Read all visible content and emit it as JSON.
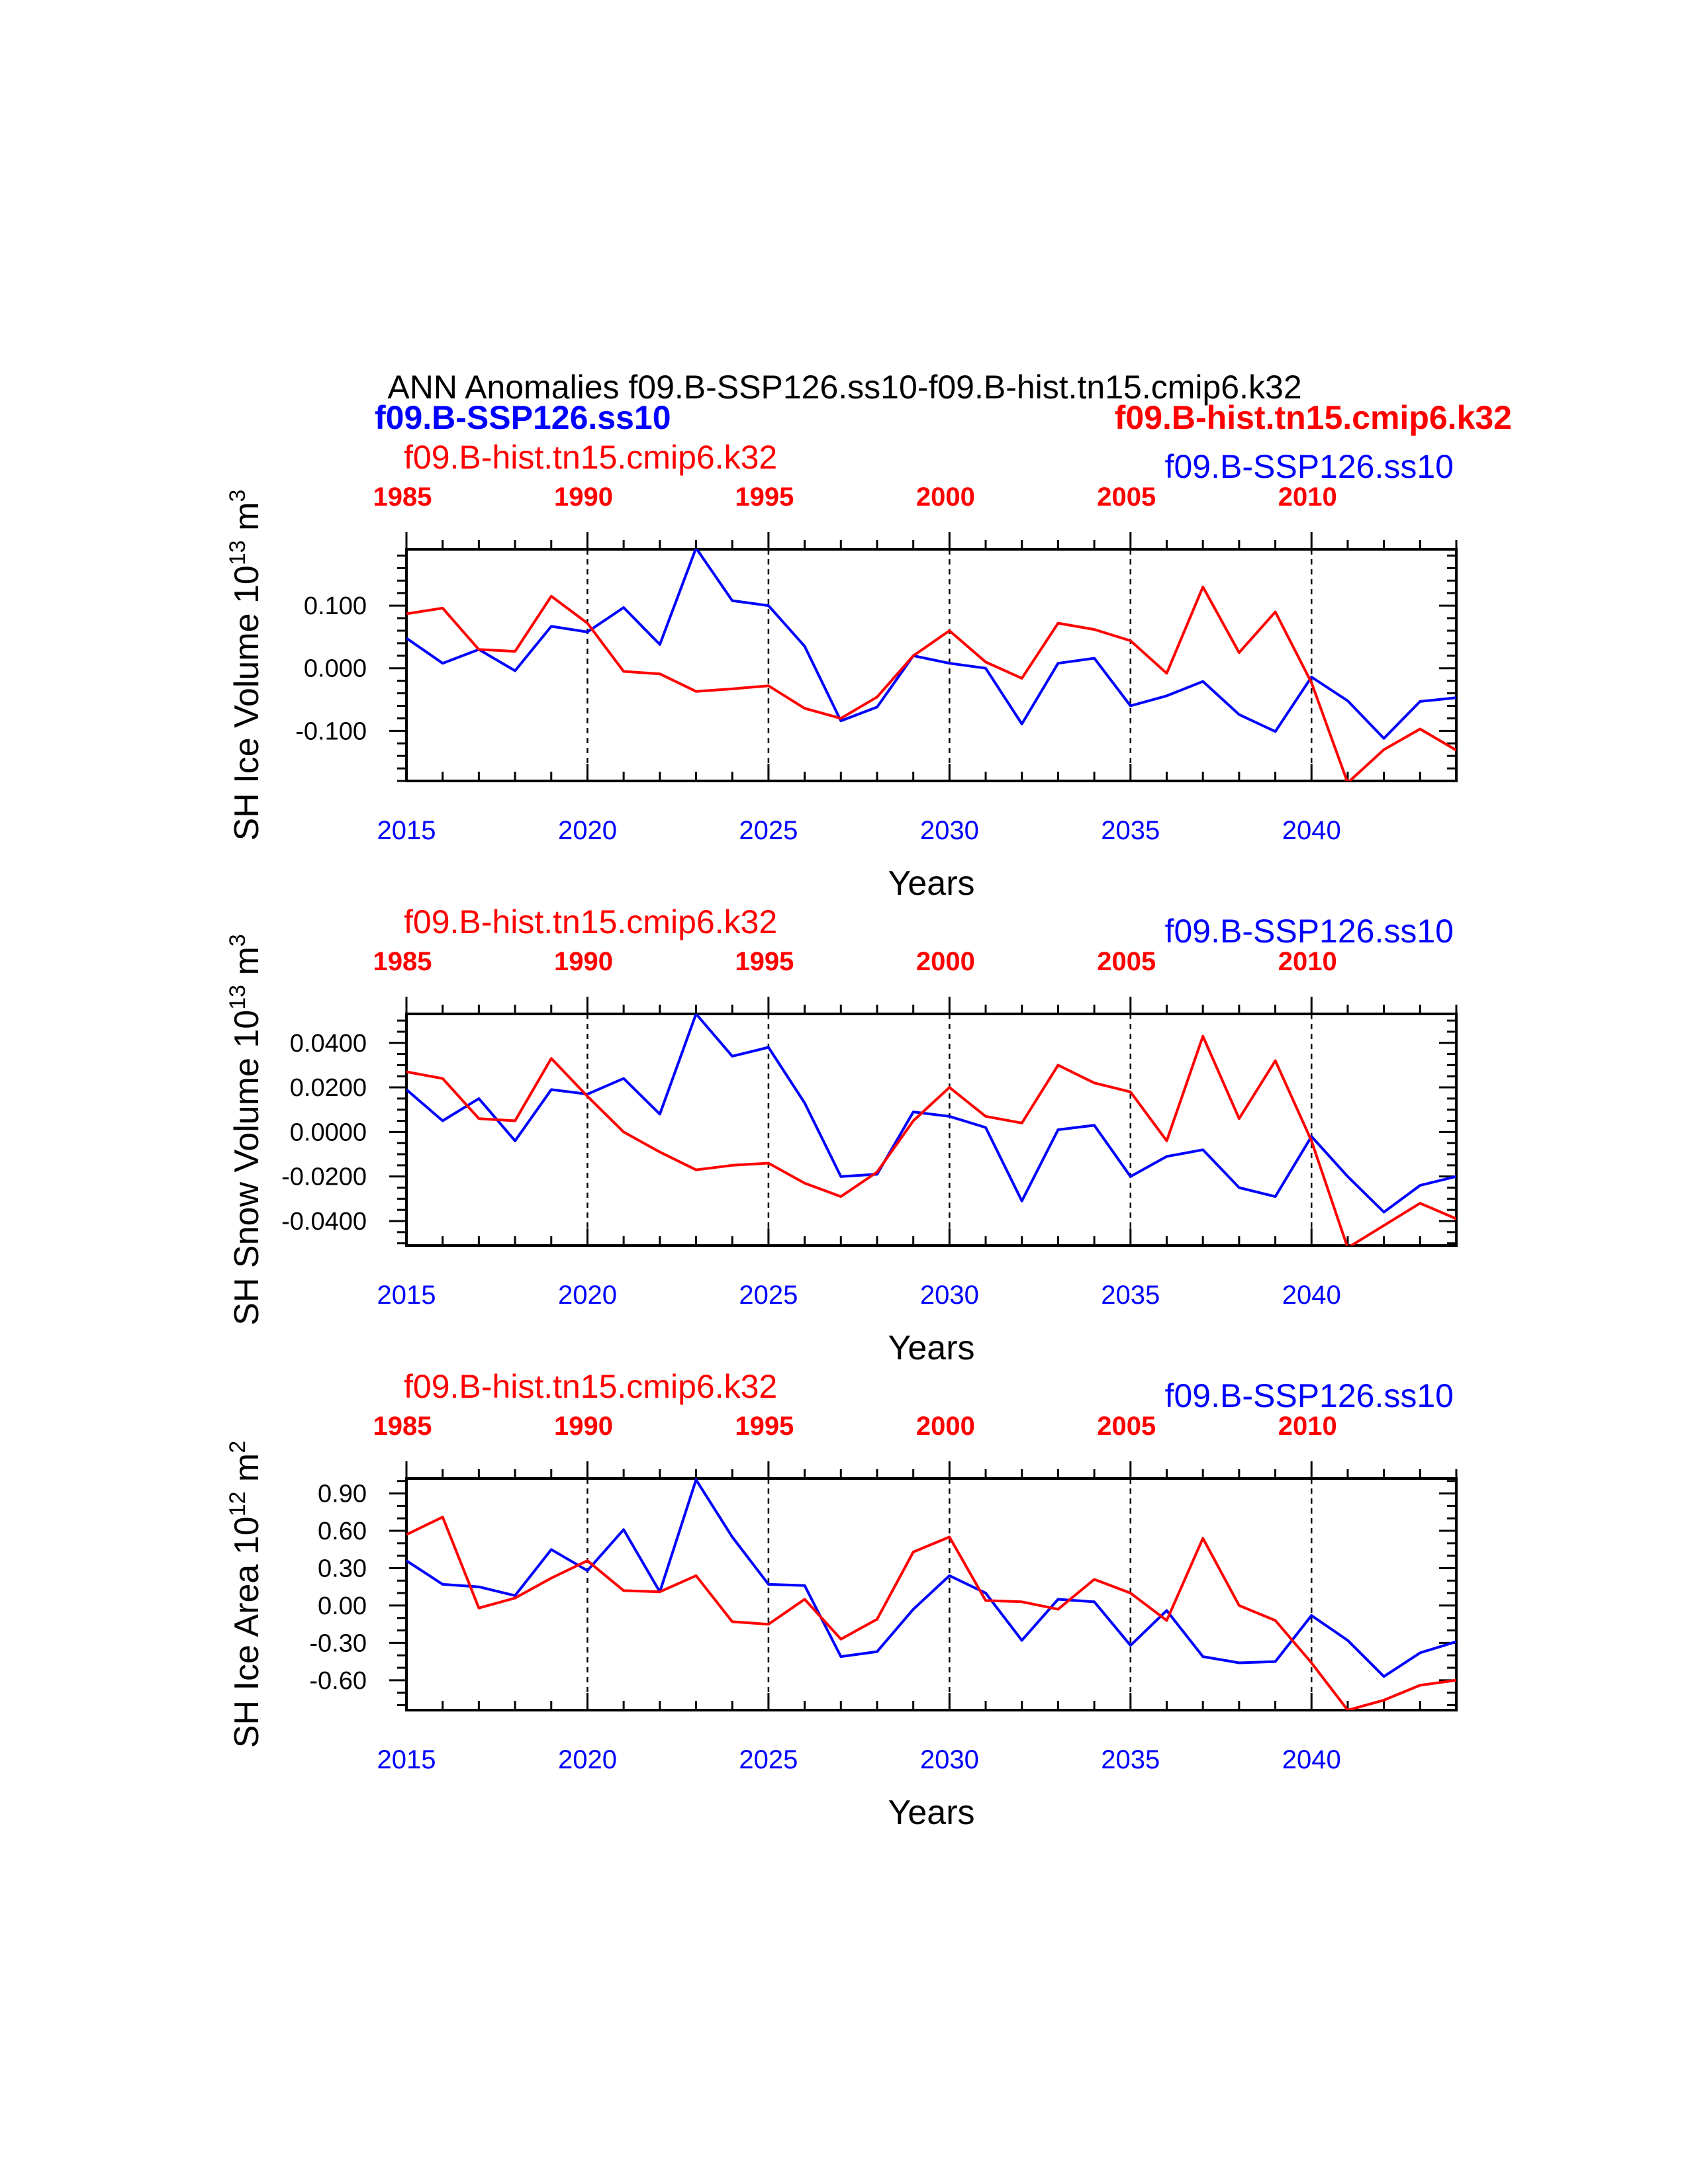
{
  "page": {
    "title": "ANN Anomalies f09.B-SSP126.ss10-f09.B-hist.tn15.cmip6.k32",
    "legend_blue": "f09.B-SSP126.ss10",
    "legend_red": "f09.B-hist.tn15.cmip6.k32"
  },
  "colors": {
    "case1": "#0000ff",
    "case2": "#ff0000",
    "axis": "#000000"
  },
  "chart_data": [
    {
      "type": "line",
      "ylabel_main": "SH Ice Volume 10",
      "ylabel_exp": "13",
      "ylabel_unit": " m",
      "ylabel_unit_exp": "3",
      "xlabel": "Years",
      "top_left_label": "f09.B-hist.tn15.cmip6.k32",
      "top_right_label": "f09.B-SSP126.ss10",
      "ylim": [
        -0.18,
        0.19
      ],
      "yticks": [
        -0.1,
        0.0,
        0.1
      ],
      "ytick_labels": [
        "-0.100",
        "0.000",
        "0.100"
      ],
      "yminor": 0.02,
      "xlim": [
        2015,
        2044
      ],
      "bottom_ticks": [
        2015,
        2020,
        2025,
        2030,
        2035,
        2040
      ],
      "bottom_tick_labels": [
        "2015",
        "2020",
        "2025",
        "2030",
        "2035",
        "2040"
      ],
      "top_tick_labels": [
        "1985",
        "1990",
        "1995",
        "2000",
        "2005",
        "2010"
      ],
      "x": [
        2015,
        2016,
        2017,
        2018,
        2019,
        2020,
        2021,
        2022,
        2023,
        2024,
        2025,
        2026,
        2027,
        2028,
        2029,
        2030,
        2031,
        2032,
        2033,
        2034,
        2035,
        2036,
        2037,
        2038,
        2039,
        2040,
        2041,
        2042,
        2043,
        2044
      ],
      "series": [
        {
          "name": "f09.B-SSP126.ss10",
          "color": "#0000ff",
          "values": [
            0.048,
            0.008,
            0.03,
            -0.004,
            0.067,
            0.058,
            0.097,
            0.038,
            0.192,
            0.108,
            0.1,
            0.035,
            -0.084,
            -0.062,
            0.02,
            0.008,
            0.0,
            -0.089,
            0.008,
            0.016,
            -0.06,
            -0.044,
            -0.021,
            -0.074,
            -0.101,
            -0.014,
            -0.052,
            -0.112,
            -0.053,
            -0.047
          ]
        },
        {
          "name": "f09.B-hist.tn15.cmip6.k32",
          "color": "#ff0000",
          "values": [
            0.087,
            0.096,
            0.03,
            0.027,
            0.115,
            0.072,
            -0.005,
            -0.009,
            -0.037,
            -0.033,
            -0.028,
            -0.064,
            -0.08,
            -0.046,
            0.02,
            0.06,
            0.01,
            -0.016,
            0.072,
            0.062,
            0.044,
            -0.008,
            0.13,
            0.025,
            0.09,
            -0.023,
            -0.183,
            -0.13,
            -0.097,
            -0.131
          ]
        }
      ]
    },
    {
      "type": "line",
      "ylabel_main": "SH Snow Volume 10",
      "ylabel_exp": "13",
      "ylabel_unit": " m",
      "ylabel_unit_exp": "3",
      "xlabel": "Years",
      "top_left_label": "f09.B-hist.tn15.cmip6.k32",
      "top_right_label": "f09.B-SSP126.ss10",
      "ylim": [
        -0.051,
        0.053
      ],
      "yticks": [
        -0.04,
        -0.02,
        0.0,
        0.02,
        0.04
      ],
      "ytick_labels": [
        "-0.0400",
        "-0.0200",
        "0.0000",
        "0.0200",
        "0.0400"
      ],
      "yminor": 0.005,
      "xlim": [
        2015,
        2044
      ],
      "bottom_ticks": [
        2015,
        2020,
        2025,
        2030,
        2035,
        2040
      ],
      "bottom_tick_labels": [
        "2015",
        "2020",
        "2025",
        "2030",
        "2035",
        "2040"
      ],
      "top_tick_labels": [
        "1985",
        "1990",
        "1995",
        "2000",
        "2005",
        "2010"
      ],
      "x": [
        2015,
        2016,
        2017,
        2018,
        2019,
        2020,
        2021,
        2022,
        2023,
        2024,
        2025,
        2026,
        2027,
        2028,
        2029,
        2030,
        2031,
        2032,
        2033,
        2034,
        2035,
        2036,
        2037,
        2038,
        2039,
        2040,
        2041,
        2042,
        2043,
        2044
      ],
      "series": [
        {
          "name": "f09.B-SSP126.ss10",
          "color": "#0000ff",
          "values": [
            0.019,
            0.005,
            0.015,
            -0.004,
            0.019,
            0.017,
            0.024,
            0.008,
            0.053,
            0.034,
            0.038,
            0.013,
            -0.02,
            -0.019,
            0.009,
            0.007,
            0.002,
            -0.031,
            0.001,
            0.003,
            -0.02,
            -0.011,
            -0.008,
            -0.025,
            -0.029,
            -0.002,
            -0.02,
            -0.036,
            -0.024,
            -0.02
          ]
        },
        {
          "name": "f09.B-hist.tn15.cmip6.k32",
          "color": "#ff0000",
          "values": [
            0.027,
            0.024,
            0.006,
            0.005,
            0.033,
            0.016,
            0.0,
            -0.009,
            -0.017,
            -0.015,
            -0.014,
            -0.023,
            -0.029,
            -0.018,
            0.005,
            0.02,
            0.007,
            0.004,
            0.03,
            0.022,
            0.018,
            -0.004,
            0.043,
            0.006,
            0.032,
            -0.004,
            -0.052,
            -0.042,
            -0.032,
            -0.039
          ]
        }
      ]
    },
    {
      "type": "line",
      "ylabel_main": "SH Ice Area 10",
      "ylabel_exp": "12",
      "ylabel_unit": " m",
      "ylabel_unit_exp": "2",
      "xlabel": "Years",
      "top_left_label": "f09.B-hist.tn15.cmip6.k32",
      "top_right_label": "f09.B-SSP126.ss10",
      "ylim": [
        -0.84,
        1.02
      ],
      "yticks": [
        -0.6,
        -0.3,
        0.0,
        0.3,
        0.6,
        0.9
      ],
      "ytick_labels": [
        "-0.60",
        "-0.30",
        "0.00",
        "0.30",
        "0.60",
        "0.90"
      ],
      "yminor": 0.1,
      "xlim": [
        2015,
        2044
      ],
      "bottom_ticks": [
        2015,
        2020,
        2025,
        2030,
        2035,
        2040
      ],
      "bottom_tick_labels": [
        "2015",
        "2020",
        "2025",
        "2030",
        "2035",
        "2040"
      ],
      "top_tick_labels": [
        "1985",
        "1990",
        "1995",
        "2000",
        "2005",
        "2010"
      ],
      "x": [
        2015,
        2016,
        2017,
        2018,
        2019,
        2020,
        2021,
        2022,
        2023,
        2024,
        2025,
        2026,
        2027,
        2028,
        2029,
        2030,
        2031,
        2032,
        2033,
        2034,
        2035,
        2036,
        2037,
        2038,
        2039,
        2040,
        2041,
        2042,
        2043,
        2044
      ],
      "series": [
        {
          "name": "f09.B-SSP126.ss10",
          "color": "#0000ff",
          "values": [
            0.36,
            0.17,
            0.15,
            0.08,
            0.45,
            0.28,
            0.61,
            0.11,
            1.01,
            0.55,
            0.17,
            0.16,
            -0.41,
            -0.37,
            -0.03,
            0.24,
            0.1,
            -0.28,
            0.05,
            0.03,
            -0.32,
            -0.04,
            -0.41,
            -0.46,
            -0.45,
            -0.08,
            -0.28,
            -0.57,
            -0.38,
            -0.29
          ]
        },
        {
          "name": "f09.B-hist.tn15.cmip6.k32",
          "color": "#ff0000",
          "values": [
            0.57,
            0.71,
            -0.02,
            0.06,
            0.22,
            0.36,
            0.12,
            0.11,
            0.24,
            -0.13,
            -0.15,
            0.05,
            -0.27,
            -0.11,
            0.43,
            0.55,
            0.04,
            0.03,
            -0.03,
            0.21,
            0.1,
            -0.12,
            0.54,
            0.0,
            -0.12,
            -0.46,
            -0.84,
            -0.76,
            -0.64,
            -0.6
          ]
        }
      ]
    }
  ]
}
